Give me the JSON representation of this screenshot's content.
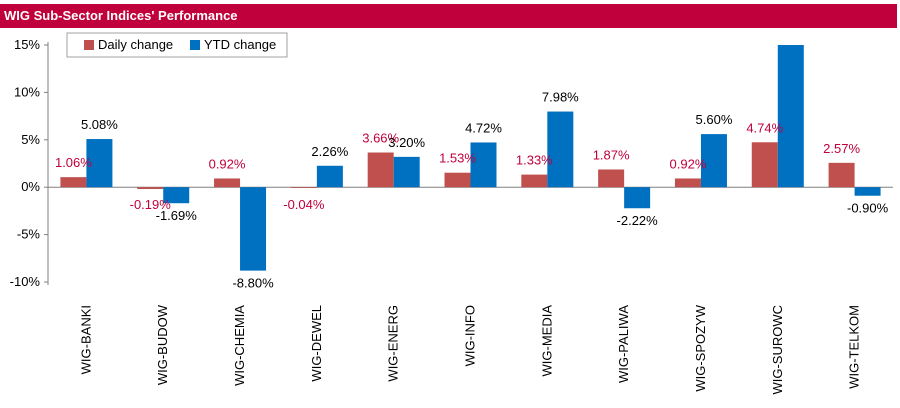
{
  "chart_data": {
    "type": "bar",
    "title": "WIG Sub-Sector Indices' Performance",
    "categories": [
      "WIG-BANKI",
      "WIG-BUDOW",
      "WIG-CHEMIA",
      "WIG-DEWEL",
      "WIG-ENERG",
      "WIG-INFO",
      "WIG-MEDIA",
      "WIG-PALIWA",
      "WIG-SPOZYW",
      "WIG-SUROWC",
      "WIG-TELKOM"
    ],
    "series": [
      {
        "name": "Daily change",
        "color": "#c0504d",
        "label_color": "#c0003c",
        "values": [
          1.06,
          -0.19,
          0.92,
          -0.04,
          3.66,
          1.53,
          1.33,
          1.87,
          0.92,
          4.74,
          2.57
        ],
        "labels": [
          "1.06%",
          "-0.19%",
          "0.92%",
          "-0.04%",
          "3.66%",
          "1.53%",
          "1.33%",
          "1.87%",
          "0.92%",
          "4.74%",
          "2.57%"
        ]
      },
      {
        "name": "YTD change",
        "color": "#0070c0",
        "label_color": "#000000",
        "values": [
          5.08,
          -1.69,
          -8.8,
          2.26,
          3.2,
          4.72,
          7.98,
          -2.22,
          5.6,
          15.0,
          -0.9
        ],
        "labels": [
          "5.08%",
          "-1.69%",
          "-8.80%",
          "2.26%",
          "3.20%",
          "4.72%",
          "7.98%",
          "-2.22%",
          "5.60%",
          "",
          "-0.90%"
        ]
      }
    ],
    "yticks": [
      15,
      10,
      5,
      0,
      -5,
      -10
    ],
    "ytick_labels": [
      "15%",
      "10%",
      "5%",
      "0%",
      "-5%",
      "-10%"
    ],
    "ylim": [
      -10,
      15
    ],
    "xlabel": "",
    "ylabel": "",
    "grid": false,
    "legend_position": "top-left"
  }
}
